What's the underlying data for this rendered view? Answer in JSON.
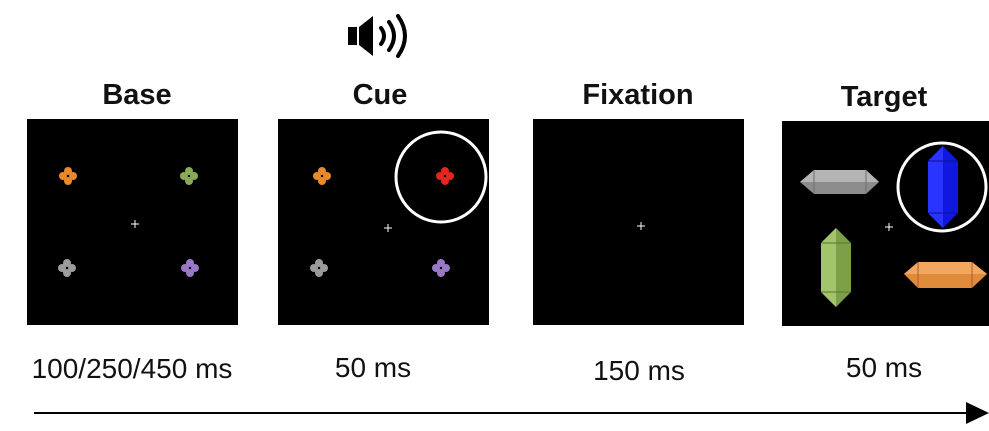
{
  "audio_icon": "speaker-sound-icon",
  "stages": [
    {
      "title": "Base",
      "duration": "100/250/450 ms"
    },
    {
      "title": "Cue",
      "duration": "50 ms"
    },
    {
      "title": "Fixation",
      "duration": "150 ms"
    },
    {
      "title": "Target",
      "duration": "50 ms"
    }
  ],
  "colors": {
    "background": "#000000",
    "orange": "#e8892b",
    "green": "#8aab55",
    "gray": "#9b9b9b",
    "purple": "#9a78c8",
    "red": "#e4261c",
    "blue": "#1018e0",
    "cue_circle": "#ffffff"
  }
}
